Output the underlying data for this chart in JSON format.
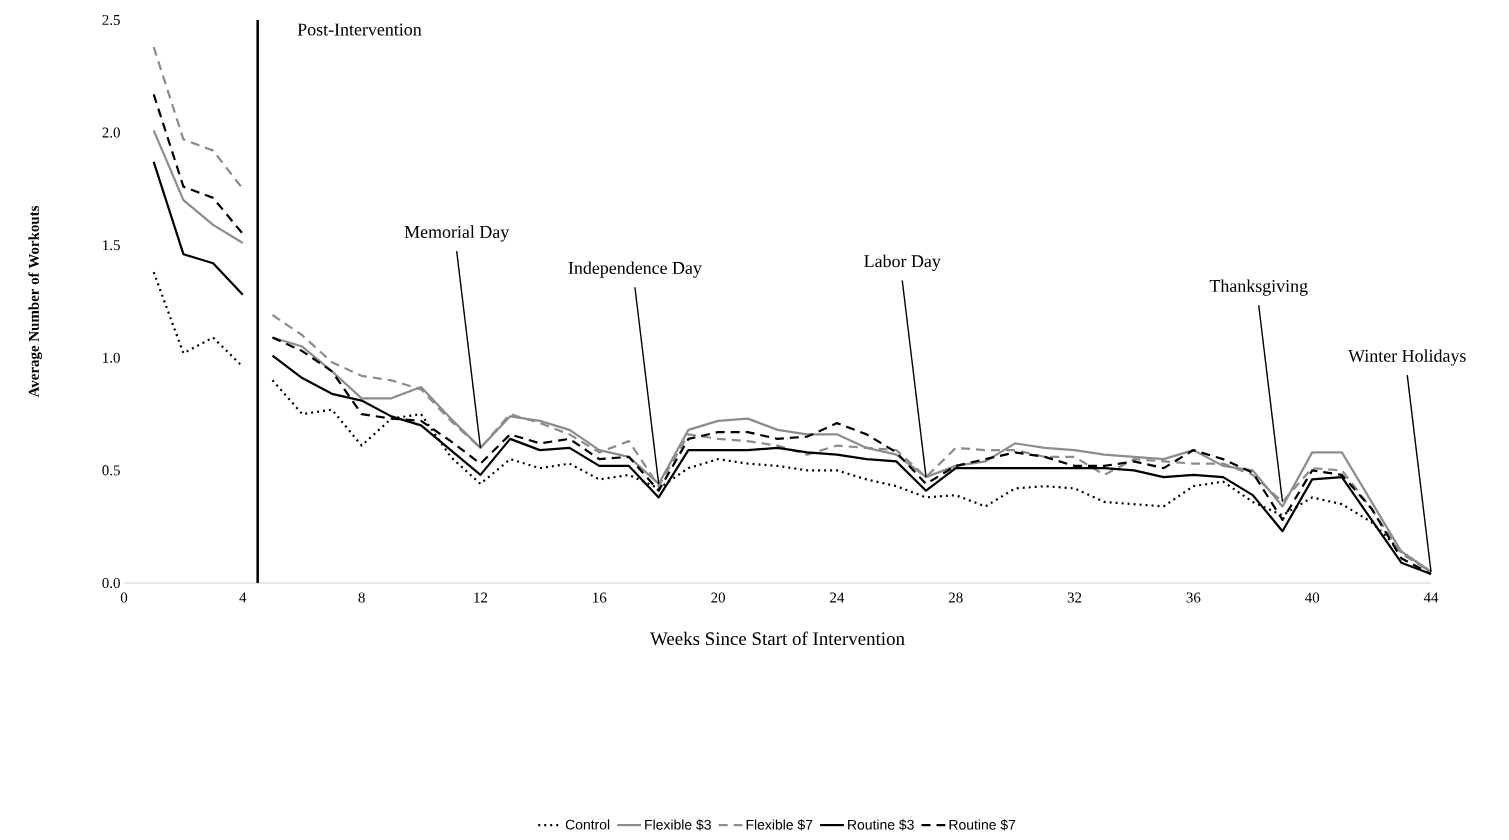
{
  "chart_data": {
    "type": "line",
    "xlabel": "Weeks Since Start of Intervention",
    "ylabel": "Average Number of Workouts",
    "x": [
      1,
      2,
      3,
      4,
      4.5,
      5,
      6,
      7,
      8,
      9,
      10,
      11,
      12,
      13,
      14,
      15,
      16,
      17,
      18,
      19,
      20,
      21,
      22,
      23,
      24,
      25,
      26,
      27,
      28,
      29,
      30,
      31,
      32,
      33,
      34,
      35,
      36,
      37,
      38,
      39,
      40,
      41,
      42,
      43,
      44
    ],
    "series": [
      {
        "name": "Control",
        "color": "#000000",
        "line_style": "dotted",
        "values": [
          1.38,
          1.02,
          1.09,
          0.96,
          null,
          0.9,
          0.75,
          0.77,
          0.61,
          0.73,
          0.75,
          0.56,
          0.44,
          0.55,
          0.51,
          0.53,
          0.46,
          0.48,
          0.42,
          0.51,
          0.55,
          0.53,
          0.52,
          0.5,
          0.5,
          0.46,
          0.43,
          0.38,
          0.39,
          0.34,
          0.42,
          0.43,
          0.42,
          0.36,
          0.35,
          0.34,
          0.43,
          0.45,
          0.36,
          0.3,
          0.38,
          0.35,
          0.27,
          0.14,
          0.05
        ]
      },
      {
        "name": "Flexible $3",
        "color": "#8c8c8c",
        "line_style": "solid",
        "values": [
          2.01,
          1.7,
          1.59,
          1.51,
          null,
          1.09,
          1.05,
          0.94,
          0.82,
          0.82,
          0.87,
          0.73,
          0.6,
          0.74,
          0.72,
          0.68,
          0.59,
          0.56,
          0.44,
          0.68,
          0.72,
          0.73,
          0.68,
          0.66,
          0.66,
          0.6,
          0.57,
          0.47,
          0.52,
          0.54,
          0.62,
          0.6,
          0.59,
          0.57,
          0.56,
          0.55,
          0.59,
          0.52,
          0.5,
          0.34,
          0.58,
          0.58,
          0.36,
          0.14,
          0.05
        ]
      },
      {
        "name": "Flexible $7",
        "color": "#8c8c8c",
        "line_style": "dashed",
        "values": [
          2.38,
          1.97,
          1.92,
          1.75,
          null,
          1.19,
          1.1,
          0.98,
          0.92,
          0.9,
          0.86,
          0.72,
          0.6,
          0.75,
          0.71,
          0.66,
          0.58,
          0.63,
          0.43,
          0.66,
          0.64,
          0.63,
          0.61,
          0.57,
          0.61,
          0.6,
          0.59,
          0.47,
          0.6,
          0.59,
          0.59,
          0.56,
          0.56,
          0.48,
          0.55,
          0.54,
          0.53,
          0.53,
          0.48,
          0.36,
          0.51,
          0.5,
          0.33,
          0.13,
          0.05
        ]
      },
      {
        "name": "Routine $3",
        "color": "#000000",
        "line_style": "solid",
        "values": [
          1.87,
          1.46,
          1.42,
          1.28,
          null,
          1.01,
          0.91,
          0.84,
          0.81,
          0.74,
          0.7,
          0.59,
          0.48,
          0.64,
          0.59,
          0.6,
          0.52,
          0.52,
          0.38,
          0.59,
          0.59,
          0.59,
          0.6,
          0.58,
          0.57,
          0.55,
          0.54,
          0.41,
          0.51,
          0.51,
          0.51,
          0.51,
          0.51,
          0.51,
          0.5,
          0.47,
          0.48,
          0.47,
          0.39,
          0.23,
          0.46,
          0.47,
          0.28,
          0.09,
          0.04
        ]
      },
      {
        "name": "Routine $7",
        "color": "#000000",
        "line_style": "dashed",
        "values": [
          2.17,
          1.76,
          1.71,
          1.55,
          null,
          1.09,
          1.03,
          0.94,
          0.75,
          0.73,
          0.72,
          0.63,
          0.53,
          0.66,
          0.62,
          0.64,
          0.55,
          0.56,
          0.41,
          0.64,
          0.67,
          0.67,
          0.64,
          0.65,
          0.71,
          0.66,
          0.58,
          0.44,
          0.52,
          0.55,
          0.58,
          0.56,
          0.52,
          0.52,
          0.54,
          0.51,
          0.59,
          0.55,
          0.49,
          0.28,
          0.5,
          0.48,
          0.33,
          0.11,
          0.04
        ]
      }
    ],
    "xlim": [
      0,
      44
    ],
    "xticks": [
      0,
      4,
      8,
      12,
      16,
      20,
      24,
      28,
      32,
      36,
      40,
      44
    ],
    "ylim": [
      0,
      2.5
    ],
    "yticks": [
      {
        "value": 0,
        "label": "0.0"
      },
      0.5,
      {
        "value": 1,
        "label": "1.0"
      },
      1.5,
      {
        "value": 2,
        "label": "2.0"
      },
      2.5
    ],
    "ref_lines": [
      {
        "axis": "x",
        "value": 4.5,
        "label": "Post-Intervention",
        "color": "#000000"
      }
    ],
    "annotations": [
      {
        "text": "Memorial Day",
        "x": 12,
        "y": 0.6
      },
      {
        "text": "Independence Day",
        "x": 18,
        "y": 0.44
      },
      {
        "text": "Labor Day",
        "x": 27,
        "y": 0.47
      },
      {
        "text": "Thanksgiving",
        "x": 39,
        "y": 0.36
      },
      {
        "text": "Winter Holidays",
        "x": 44,
        "y": 0.05
      }
    ],
    "grid": false,
    "legend": "bottom",
    "marker": "none"
  }
}
